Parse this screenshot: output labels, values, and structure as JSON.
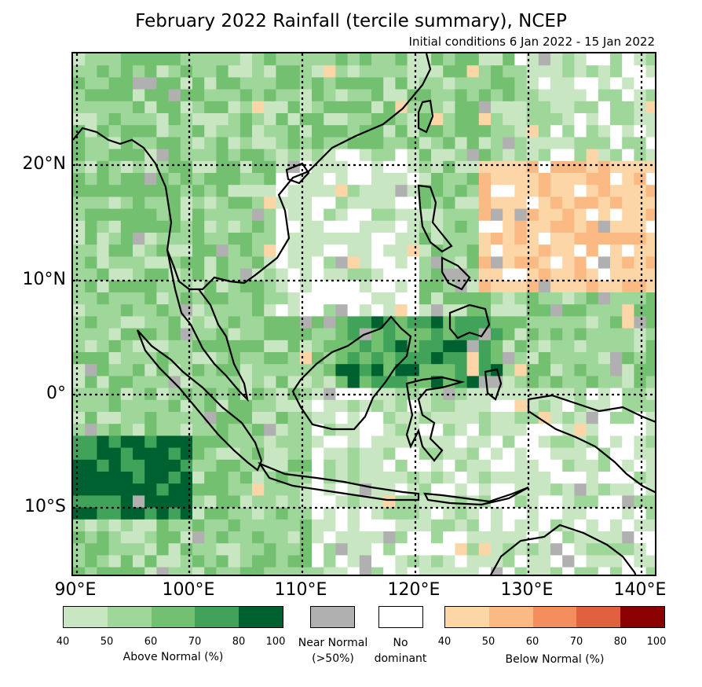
{
  "title": "February 2022 Rainfall (tercile summary), NCEP",
  "subtitle": "Initial conditions 6 Jan 2022 - 15 Jan 2022",
  "axes": {
    "lat_labels": [
      "20°N",
      "10°N",
      "0°",
      "10°S"
    ],
    "lon_labels": [
      "90°E",
      "100°E",
      "110°E",
      "120°E",
      "130°E",
      "140°E"
    ]
  },
  "legend": {
    "above": {
      "label": "Above Normal (%)",
      "ticks": [
        "40",
        "50",
        "60",
        "70",
        "80",
        "100"
      ],
      "colors": [
        "#c8e6c2",
        "#9fd69a",
        "#73c070",
        "#41a35a",
        "#006130"
      ]
    },
    "near": {
      "label_line1": "Near Normal",
      "label_line2": "(>50%)",
      "color": "#b0b0b0"
    },
    "none": {
      "label_line1": "No",
      "label_line2": "dominant",
      "color": "#ffffff"
    },
    "below": {
      "label": "Below Normal (%)",
      "ticks": [
        "40",
        "50",
        "60",
        "70",
        "80",
        "100"
      ],
      "colors": [
        "#fdd6a8",
        "#fbb983",
        "#f48e5c",
        "#e0603f",
        "#8b0000"
      ]
    }
  }
}
